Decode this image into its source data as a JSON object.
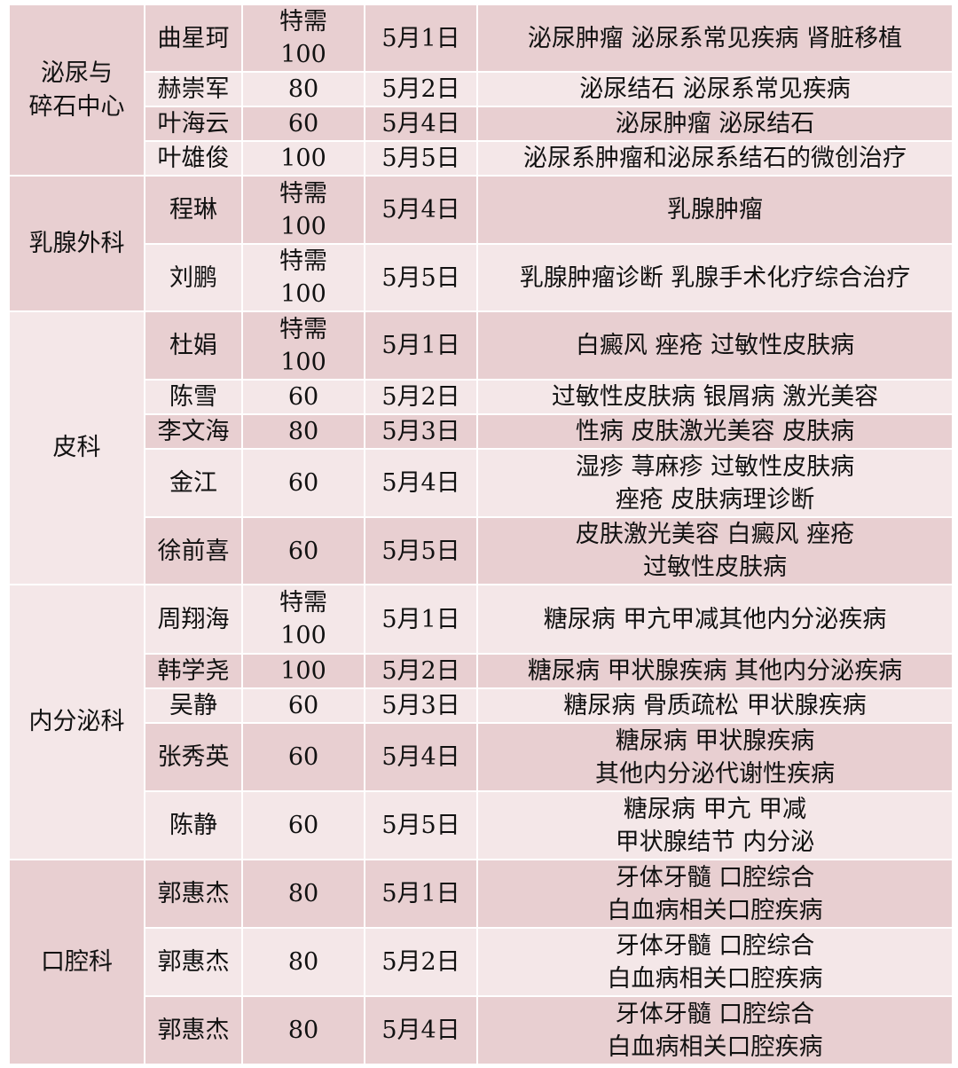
{
  "colors": {
    "dark": "#e8cfd1",
    "light": "#f4e7e8",
    "border": "#ffffff"
  },
  "groups": [
    {
      "department": "泌尿与\n碎石中心",
      "shade": "dark",
      "rows": [
        {
          "doctor": "曲星珂",
          "fee": "特需\n100",
          "date": "5月1日",
          "specialty": "泌尿肿瘤 泌尿系常见疾病 肾脏移植"
        },
        {
          "doctor": "赫崇军",
          "fee": "80",
          "date": "5月2日",
          "specialty": "泌尿结石 泌尿系常见疾病"
        },
        {
          "doctor": "叶海云",
          "fee": "60",
          "date": "5月4日",
          "specialty": "泌尿肿瘤 泌尿结石"
        },
        {
          "doctor": "叶雄俊",
          "fee": "100",
          "date": "5月5日",
          "specialty": "泌尿系肿瘤和泌尿系结石的微创治疗"
        }
      ]
    },
    {
      "department": "乳腺外科",
      "shade": "dark",
      "rows": [
        {
          "doctor": "程琳",
          "fee": "特需\n100",
          "date": "5月4日",
          "specialty": "乳腺肿瘤"
        },
        {
          "doctor": "刘鹏",
          "fee": "特需\n100",
          "date": "5月5日",
          "specialty": "乳腺肿瘤诊断 乳腺手术化疗综合治疗"
        }
      ]
    },
    {
      "department": "皮科",
      "shade": "light",
      "rows": [
        {
          "doctor": "杜娟",
          "fee": "特需\n100",
          "date": "5月1日",
          "specialty": "白癜风 痤疮 过敏性皮肤病"
        },
        {
          "doctor": "陈雪",
          "fee": "60",
          "date": "5月2日",
          "specialty": "过敏性皮肤病 银屑病 激光美容"
        },
        {
          "doctor": "李文海",
          "fee": "80",
          "date": "5月3日",
          "specialty": "性病 皮肤激光美容 皮肤病"
        },
        {
          "doctor": "金江",
          "fee": "60",
          "date": "5月4日",
          "specialty": "湿疹 荨麻疹 过敏性皮肤病\n痤疮 皮肤病理诊断"
        },
        {
          "doctor": "徐前喜",
          "fee": "60",
          "date": "5月5日",
          "specialty": "皮肤激光美容 白癜风 痤疮\n过敏性皮肤病"
        }
      ]
    },
    {
      "department": "内分泌科",
      "shade": "light",
      "rows": [
        {
          "doctor": "周翔海",
          "fee": "特需\n100",
          "date": "5月1日",
          "specialty": "糖尿病 甲亢甲减其他内分泌疾病"
        },
        {
          "doctor": "韩学尧",
          "fee": "100",
          "date": "5月2日",
          "specialty": "糖尿病 甲状腺疾病 其他内分泌疾病"
        },
        {
          "doctor": "吴静",
          "fee": "60",
          "date": "5月3日",
          "specialty": "糖尿病 骨质疏松 甲状腺疾病"
        },
        {
          "doctor": "张秀英",
          "fee": "60",
          "date": "5月4日",
          "specialty": "糖尿病 甲状腺疾病\n其他内分泌代谢性疾病"
        },
        {
          "doctor": "陈静",
          "fee": "60",
          "date": "5月5日",
          "specialty": "糖尿病 甲亢 甲减\n甲状腺结节 内分泌"
        }
      ]
    },
    {
      "department": "口腔科",
      "shade": "dark",
      "rows": [
        {
          "doctor": "郭惠杰",
          "fee": "80",
          "date": "5月1日",
          "specialty": "牙体牙髓 口腔综合\n白血病相关口腔疾病"
        },
        {
          "doctor": "郭惠杰",
          "fee": "80",
          "date": "5月2日",
          "specialty": "牙体牙髓 口腔综合\n白血病相关口腔疾病"
        },
        {
          "doctor": "郭惠杰",
          "fee": "80",
          "date": "5月4日",
          "specialty": "牙体牙髓 口腔综合\n白血病相关口腔疾病"
        }
      ]
    }
  ]
}
